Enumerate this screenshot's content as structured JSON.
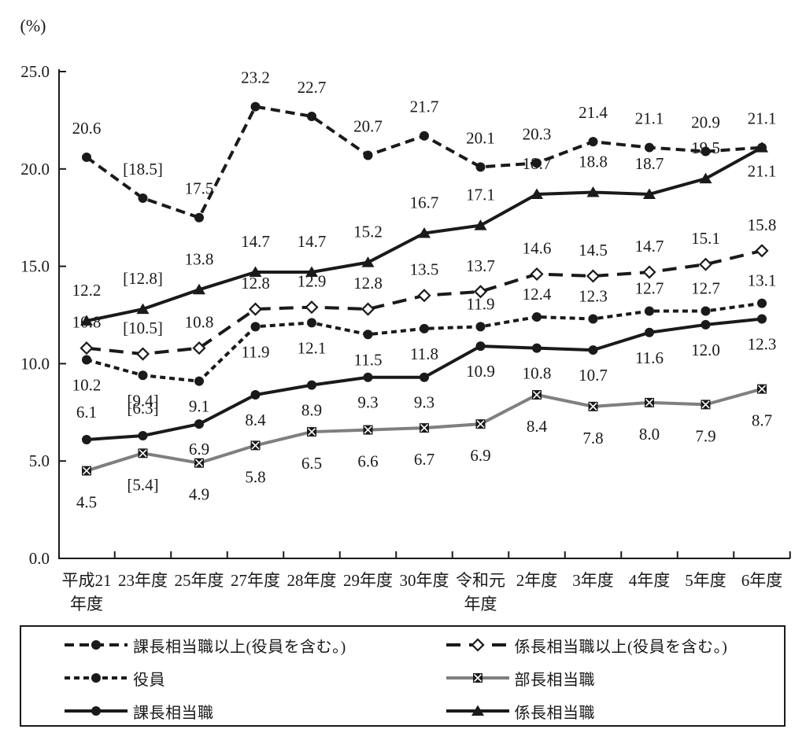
{
  "chart_data": {
    "type": "line",
    "title": "",
    "unit_label": "(%)",
    "ylim": [
      0,
      25
    ],
    "grid": "off",
    "legend_position": "bottom",
    "legend_columns": 2,
    "colors": {
      "line_black": "#1a1a1a",
      "line_gray": "#7f7f7f",
      "text": "#1a1a1a"
    },
    "y_ticks": [
      {
        "value": 0,
        "label": "0.0"
      },
      {
        "value": 5,
        "label": "5.0"
      },
      {
        "value": 10,
        "label": "10.0"
      },
      {
        "value": 15,
        "label": "15.0"
      },
      {
        "value": 20,
        "label": "20.0"
      },
      {
        "value": 25,
        "label": "25.0"
      }
    ],
    "categories": [
      "平成21\n年度",
      "23年度",
      "25年度",
      "27年度",
      "28年度",
      "29年度",
      "30年度",
      "令和元\n年度",
      "2年度",
      "3年度",
      "4年度",
      "5年度",
      "6年度"
    ],
    "series": [
      {
        "key": "kacho-ijo",
        "name": "課長相当職以上(役員を含む。)",
        "line": "dashed-medium",
        "color": "#1a1a1a",
        "marker": "filled-circle",
        "values": [
          20.6,
          18.5,
          17.5,
          23.2,
          22.7,
          20.7,
          21.7,
          20.1,
          20.3,
          21.4,
          21.1,
          20.9,
          21.1
        ],
        "point_labels": [
          "20.6",
          "[18.5]",
          "17.5",
          "23.2",
          "22.7",
          "20.7",
          "21.7",
          "20.1",
          "20.3",
          "21.4",
          "21.1",
          "20.9",
          "21.1"
        ]
      },
      {
        "key": "kakaricho-ijo",
        "name": "係長相当職以上(役員を含む。)",
        "line": "dashed-long",
        "color": "#1a1a1a",
        "marker": "open-diamond",
        "values": [
          10.8,
          10.5,
          10.8,
          12.8,
          12.9,
          12.8,
          13.5,
          13.7,
          14.6,
          14.5,
          14.7,
          15.1,
          15.8
        ],
        "point_labels": [
          "10.8",
          "[10.5]",
          "10.8",
          "12.8",
          "12.9",
          "12.8",
          "13.5",
          "13.7",
          "14.6",
          "14.5",
          "14.7",
          "15.1",
          "15.8"
        ]
      },
      {
        "key": "yakuin",
        "name": "役員",
        "line": "dashed-short",
        "color": "#1a1a1a",
        "marker": "filled-circle",
        "values": [
          10.2,
          9.4,
          9.1,
          11.9,
          12.1,
          11.5,
          11.8,
          11.9,
          12.4,
          12.3,
          12.7,
          12.7,
          13.1
        ],
        "point_labels": [
          "10.2",
          "[9.4]",
          "9.1",
          "11.9",
          "12.1",
          "11.5",
          "11.8",
          "11.9",
          "12.4",
          "12.3",
          "12.7",
          "12.7",
          "13.1"
        ]
      },
      {
        "key": "bucho",
        "name": "部長相当職",
        "line": "solid",
        "color": "#7f7f7f",
        "marker": "filled-square-x",
        "values": [
          4.5,
          5.4,
          4.9,
          5.8,
          6.5,
          6.6,
          6.7,
          6.9,
          8.4,
          7.8,
          8.0,
          7.9,
          8.7
        ],
        "point_labels": [
          "4.5",
          "[5.4]",
          "4.9",
          "5.8",
          "6.5",
          "6.6",
          "6.7",
          "6.9",
          "8.4",
          "7.8",
          "8.0",
          "7.9",
          "8.7"
        ]
      },
      {
        "key": "kacho",
        "name": "課長相当職",
        "line": "solid",
        "color": "#1a1a1a",
        "marker": "filled-circle",
        "values": [
          6.1,
          6.3,
          6.9,
          8.4,
          8.9,
          9.3,
          9.3,
          10.9,
          10.8,
          10.7,
          11.6,
          12.0,
          12.3
        ],
        "point_labels": [
          "6.1",
          "[6.3]",
          "6.9",
          "8.4",
          "8.9",
          "9.3",
          "9.3",
          "10.9",
          "10.8",
          "10.7",
          "11.6",
          "12.0",
          "12.3"
        ]
      },
      {
        "key": "kakaricho",
        "name": "係長相当職",
        "line": "solid",
        "color": "#1a1a1a",
        "marker": "filled-triangle",
        "values": [
          12.2,
          12.8,
          13.8,
          14.7,
          14.7,
          15.2,
          16.7,
          17.1,
          18.7,
          18.8,
          18.7,
          19.5,
          21.1
        ],
        "point_labels": [
          "12.2",
          "[12.8]",
          "13.8",
          "14.7",
          "14.7",
          "15.2",
          "16.7",
          "17.1",
          "18.7",
          "18.8",
          "18.7",
          "19.5",
          "21.1"
        ]
      }
    ]
  }
}
